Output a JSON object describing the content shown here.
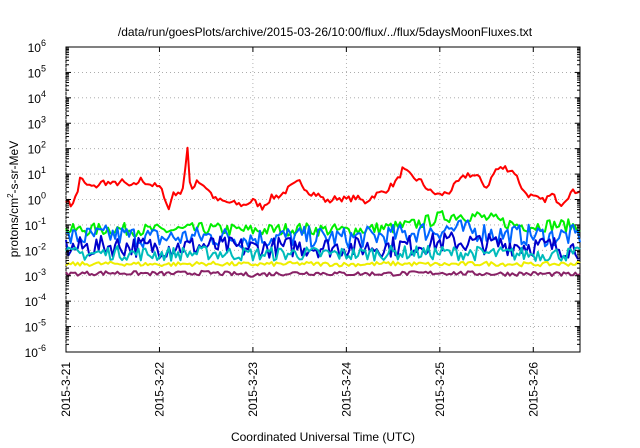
{
  "chart_data": {
    "type": "line",
    "title": "/data/run/goesPlots/archive/2015-03-26/10:00/flux/../flux/5daysMoonFluxes.txt",
    "xlabel": "Coordinated Universal Time (UTC)",
    "ylabel": "protons/cm²-s-sr-MeV",
    "ylabel_base": "protons/cm",
    "ylabel_sup": "2",
    "ylabel_tail": "-s-sr-MeV",
    "yscale": "log",
    "ylim": [
      1e-06,
      1000000.0
    ],
    "y_ticks": [
      {
        "exp": "-6",
        "value": 1e-06
      },
      {
        "exp": "-5",
        "value": 1e-05
      },
      {
        "exp": "-4",
        "value": 0.0001
      },
      {
        "exp": "-3",
        "value": 0.001
      },
      {
        "exp": "-2",
        "value": 0.01
      },
      {
        "exp": "-1",
        "value": 0.1
      },
      {
        "exp": "0",
        "value": 1
      },
      {
        "exp": "1",
        "value": 10
      },
      {
        "exp": "2",
        "value": 100
      },
      {
        "exp": "3",
        "value": 1000
      },
      {
        "exp": "4",
        "value": 10000
      },
      {
        "exp": "5",
        "value": 100000
      },
      {
        "exp": "6",
        "value": 1000000
      }
    ],
    "y_tick_base": "10",
    "xlim": [
      0,
      5.5
    ],
    "x_ticks": [
      {
        "label": "2015-3-21",
        "day": 0
      },
      {
        "label": "2015-3-22",
        "day": 1
      },
      {
        "label": "2015-3-23",
        "day": 2
      },
      {
        "label": "2015-3-24",
        "day": 3
      },
      {
        "label": "2015-3-25",
        "day": 4
      },
      {
        "label": "2015-3-26",
        "day": 5
      }
    ],
    "grid": true,
    "legend": "none",
    "series": [
      {
        "color": "#ff0000",
        "x": [
          0,
          0.05,
          0.12,
          0.15,
          0.2,
          0.3,
          0.4,
          0.5,
          0.6,
          0.7,
          0.8,
          0.9,
          1.0,
          1.05,
          1.1,
          1.15,
          1.2,
          1.25,
          1.3,
          1.33,
          1.36,
          1.4,
          1.5,
          1.6,
          1.7,
          1.8,
          1.9,
          2.0,
          2.1,
          2.2,
          2.3,
          2.4,
          2.5,
          2.6,
          2.7,
          2.8,
          2.9,
          3.0,
          3.1,
          3.2,
          3.3,
          3.4,
          3.5,
          3.55,
          3.6,
          3.7,
          3.8,
          3.9,
          4.0,
          4.1,
          4.2,
          4.3,
          4.4,
          4.5,
          4.6,
          4.7,
          4.8,
          4.9,
          5.0,
          5.1,
          5.2,
          5.3,
          5.4,
          5.5
        ],
        "y": [
          1.0,
          0.6,
          1.5,
          8,
          4,
          3,
          5,
          4,
          5,
          3,
          6,
          4,
          3,
          1.5,
          0.4,
          2,
          1.5,
          3,
          100,
          2,
          3,
          6,
          3,
          1,
          0.8,
          0.7,
          0.6,
          0.9,
          0.5,
          1.2,
          1.5,
          3,
          5,
          2,
          1.5,
          0.8,
          1.2,
          1.0,
          1.2,
          0.8,
          1.5,
          2,
          4,
          6,
          15,
          8,
          5,
          2,
          1.5,
          2,
          5,
          10,
          8,
          3,
          15,
          18,
          12,
          2,
          1.2,
          0.9,
          1.5,
          0.7,
          1.8,
          2.5
        ]
      },
      {
        "color": "#00ee00",
        "x": [
          0,
          0.5,
          1,
          1.5,
          2,
          2.5,
          3,
          3.5,
          3.7,
          3.9,
          4.0,
          4.2,
          4.4,
          4.6,
          4.8,
          5.0,
          5.2,
          5.5
        ],
        "y": [
          0.06,
          0.07,
          0.06,
          0.07,
          0.06,
          0.07,
          0.06,
          0.08,
          0.1,
          0.15,
          0.2,
          0.25,
          0.22,
          0.15,
          0.1,
          0.09,
          0.1,
          0.09
        ]
      },
      {
        "color": "#0066ff",
        "x": [
          0,
          0.5,
          1,
          1.5,
          2,
          2.5,
          3,
          3.5,
          3.7,
          3.9,
          4.1,
          4.3,
          4.5,
          4.7,
          5,
          5.2,
          5.5
        ],
        "y": [
          0.03,
          0.04,
          0.03,
          0.035,
          0.03,
          0.035,
          0.03,
          0.04,
          0.05,
          0.06,
          0.07,
          0.06,
          0.05,
          0.04,
          0.04,
          0.035,
          0.04
        ]
      },
      {
        "color": "#0000cc",
        "x": [
          0,
          0.5,
          1,
          1.5,
          2,
          2.5,
          3,
          3.5,
          3.9,
          4.1,
          4.3,
          4.5,
          4.8,
          5,
          5.2,
          5.5
        ],
        "y": [
          0.012,
          0.015,
          0.013,
          0.015,
          0.012,
          0.014,
          0.013,
          0.014,
          0.018,
          0.022,
          0.02,
          0.018,
          0.016,
          0.015,
          0.014,
          0.012
        ]
      },
      {
        "color": "#00bbbb",
        "x": [
          0,
          0.5,
          1,
          1.5,
          2,
          2.5,
          3,
          3.5,
          4,
          4.5,
          5,
          5.5
        ],
        "y": [
          0.007,
          0.008,
          0.007,
          0.008,
          0.007,
          0.0075,
          0.007,
          0.008,
          0.008,
          0.0075,
          0.007,
          0.007
        ]
      },
      {
        "color": "#eeee00",
        "x": [
          0,
          0.5,
          1,
          1.5,
          2,
          2.5,
          3,
          3.5,
          4,
          4.5,
          5,
          5.5
        ],
        "y": [
          0.0028,
          0.003,
          0.0028,
          0.003,
          0.0028,
          0.003,
          0.0028,
          0.003,
          0.0028,
          0.003,
          0.0028,
          0.003
        ]
      },
      {
        "color": "#882266",
        "x": [
          0,
          0.5,
          1,
          1.5,
          2,
          2.5,
          3,
          3.5,
          4,
          4.5,
          5,
          5.5
        ],
        "y": [
          0.0012,
          0.0013,
          0.0012,
          0.0013,
          0.0011,
          0.0013,
          0.0012,
          0.0012,
          0.0013,
          0.0012,
          0.0012,
          0.0011
        ]
      }
    ]
  }
}
